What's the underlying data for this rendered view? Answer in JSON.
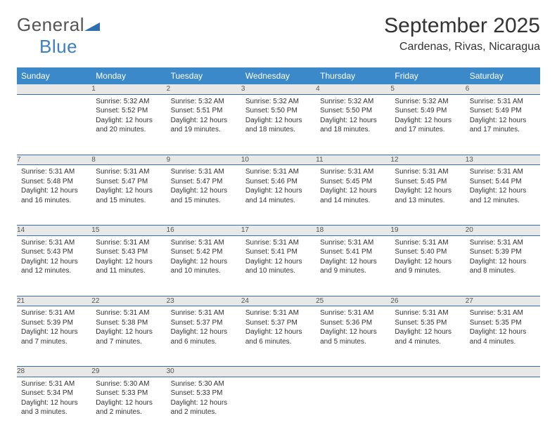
{
  "brand": {
    "part1": "General",
    "part2": "Blue"
  },
  "title": "September 2025",
  "location": "Cardenas, Rivas, Nicaragua",
  "colors": {
    "headerBg": "#3b89c9",
    "headerText": "#ffffff",
    "dayNumBg": "#e8e8e8",
    "ruleColor": "#3b6fa3"
  },
  "weekdays": [
    "Sunday",
    "Monday",
    "Tuesday",
    "Wednesday",
    "Thursday",
    "Friday",
    "Saturday"
  ],
  "weeks": [
    [
      null,
      {
        "n": "1",
        "sr": "Sunrise: 5:32 AM",
        "ss": "Sunset: 5:52 PM",
        "d1": "Daylight: 12 hours",
        "d2": "and 20 minutes."
      },
      {
        "n": "2",
        "sr": "Sunrise: 5:32 AM",
        "ss": "Sunset: 5:51 PM",
        "d1": "Daylight: 12 hours",
        "d2": "and 19 minutes."
      },
      {
        "n": "3",
        "sr": "Sunrise: 5:32 AM",
        "ss": "Sunset: 5:50 PM",
        "d1": "Daylight: 12 hours",
        "d2": "and 18 minutes."
      },
      {
        "n": "4",
        "sr": "Sunrise: 5:32 AM",
        "ss": "Sunset: 5:50 PM",
        "d1": "Daylight: 12 hours",
        "d2": "and 18 minutes."
      },
      {
        "n": "5",
        "sr": "Sunrise: 5:32 AM",
        "ss": "Sunset: 5:49 PM",
        "d1": "Daylight: 12 hours",
        "d2": "and 17 minutes."
      },
      {
        "n": "6",
        "sr": "Sunrise: 5:31 AM",
        "ss": "Sunset: 5:49 PM",
        "d1": "Daylight: 12 hours",
        "d2": "and 17 minutes."
      }
    ],
    [
      {
        "n": "7",
        "sr": "Sunrise: 5:31 AM",
        "ss": "Sunset: 5:48 PM",
        "d1": "Daylight: 12 hours",
        "d2": "and 16 minutes."
      },
      {
        "n": "8",
        "sr": "Sunrise: 5:31 AM",
        "ss": "Sunset: 5:47 PM",
        "d1": "Daylight: 12 hours",
        "d2": "and 15 minutes."
      },
      {
        "n": "9",
        "sr": "Sunrise: 5:31 AM",
        "ss": "Sunset: 5:47 PM",
        "d1": "Daylight: 12 hours",
        "d2": "and 15 minutes."
      },
      {
        "n": "10",
        "sr": "Sunrise: 5:31 AM",
        "ss": "Sunset: 5:46 PM",
        "d1": "Daylight: 12 hours",
        "d2": "and 14 minutes."
      },
      {
        "n": "11",
        "sr": "Sunrise: 5:31 AM",
        "ss": "Sunset: 5:45 PM",
        "d1": "Daylight: 12 hours",
        "d2": "and 14 minutes."
      },
      {
        "n": "12",
        "sr": "Sunrise: 5:31 AM",
        "ss": "Sunset: 5:45 PM",
        "d1": "Daylight: 12 hours",
        "d2": "and 13 minutes."
      },
      {
        "n": "13",
        "sr": "Sunrise: 5:31 AM",
        "ss": "Sunset: 5:44 PM",
        "d1": "Daylight: 12 hours",
        "d2": "and 12 minutes."
      }
    ],
    [
      {
        "n": "14",
        "sr": "Sunrise: 5:31 AM",
        "ss": "Sunset: 5:43 PM",
        "d1": "Daylight: 12 hours",
        "d2": "and 12 minutes."
      },
      {
        "n": "15",
        "sr": "Sunrise: 5:31 AM",
        "ss": "Sunset: 5:43 PM",
        "d1": "Daylight: 12 hours",
        "d2": "and 11 minutes."
      },
      {
        "n": "16",
        "sr": "Sunrise: 5:31 AM",
        "ss": "Sunset: 5:42 PM",
        "d1": "Daylight: 12 hours",
        "d2": "and 10 minutes."
      },
      {
        "n": "17",
        "sr": "Sunrise: 5:31 AM",
        "ss": "Sunset: 5:41 PM",
        "d1": "Daylight: 12 hours",
        "d2": "and 10 minutes."
      },
      {
        "n": "18",
        "sr": "Sunrise: 5:31 AM",
        "ss": "Sunset: 5:41 PM",
        "d1": "Daylight: 12 hours",
        "d2": "and 9 minutes."
      },
      {
        "n": "19",
        "sr": "Sunrise: 5:31 AM",
        "ss": "Sunset: 5:40 PM",
        "d1": "Daylight: 12 hours",
        "d2": "and 9 minutes."
      },
      {
        "n": "20",
        "sr": "Sunrise: 5:31 AM",
        "ss": "Sunset: 5:39 PM",
        "d1": "Daylight: 12 hours",
        "d2": "and 8 minutes."
      }
    ],
    [
      {
        "n": "21",
        "sr": "Sunrise: 5:31 AM",
        "ss": "Sunset: 5:39 PM",
        "d1": "Daylight: 12 hours",
        "d2": "and 7 minutes."
      },
      {
        "n": "22",
        "sr": "Sunrise: 5:31 AM",
        "ss": "Sunset: 5:38 PM",
        "d1": "Daylight: 12 hours",
        "d2": "and 7 minutes."
      },
      {
        "n": "23",
        "sr": "Sunrise: 5:31 AM",
        "ss": "Sunset: 5:37 PM",
        "d1": "Daylight: 12 hours",
        "d2": "and 6 minutes."
      },
      {
        "n": "24",
        "sr": "Sunrise: 5:31 AM",
        "ss": "Sunset: 5:37 PM",
        "d1": "Daylight: 12 hours",
        "d2": "and 6 minutes."
      },
      {
        "n": "25",
        "sr": "Sunrise: 5:31 AM",
        "ss": "Sunset: 5:36 PM",
        "d1": "Daylight: 12 hours",
        "d2": "and 5 minutes."
      },
      {
        "n": "26",
        "sr": "Sunrise: 5:31 AM",
        "ss": "Sunset: 5:35 PM",
        "d1": "Daylight: 12 hours",
        "d2": "and 4 minutes."
      },
      {
        "n": "27",
        "sr": "Sunrise: 5:31 AM",
        "ss": "Sunset: 5:35 PM",
        "d1": "Daylight: 12 hours",
        "d2": "and 4 minutes."
      }
    ],
    [
      {
        "n": "28",
        "sr": "Sunrise: 5:31 AM",
        "ss": "Sunset: 5:34 PM",
        "d1": "Daylight: 12 hours",
        "d2": "and 3 minutes."
      },
      {
        "n": "29",
        "sr": "Sunrise: 5:30 AM",
        "ss": "Sunset: 5:33 PM",
        "d1": "Daylight: 12 hours",
        "d2": "and 2 minutes."
      },
      {
        "n": "30",
        "sr": "Sunrise: 5:30 AM",
        "ss": "Sunset: 5:33 PM",
        "d1": "Daylight: 12 hours",
        "d2": "and 2 minutes."
      },
      null,
      null,
      null,
      null
    ]
  ]
}
